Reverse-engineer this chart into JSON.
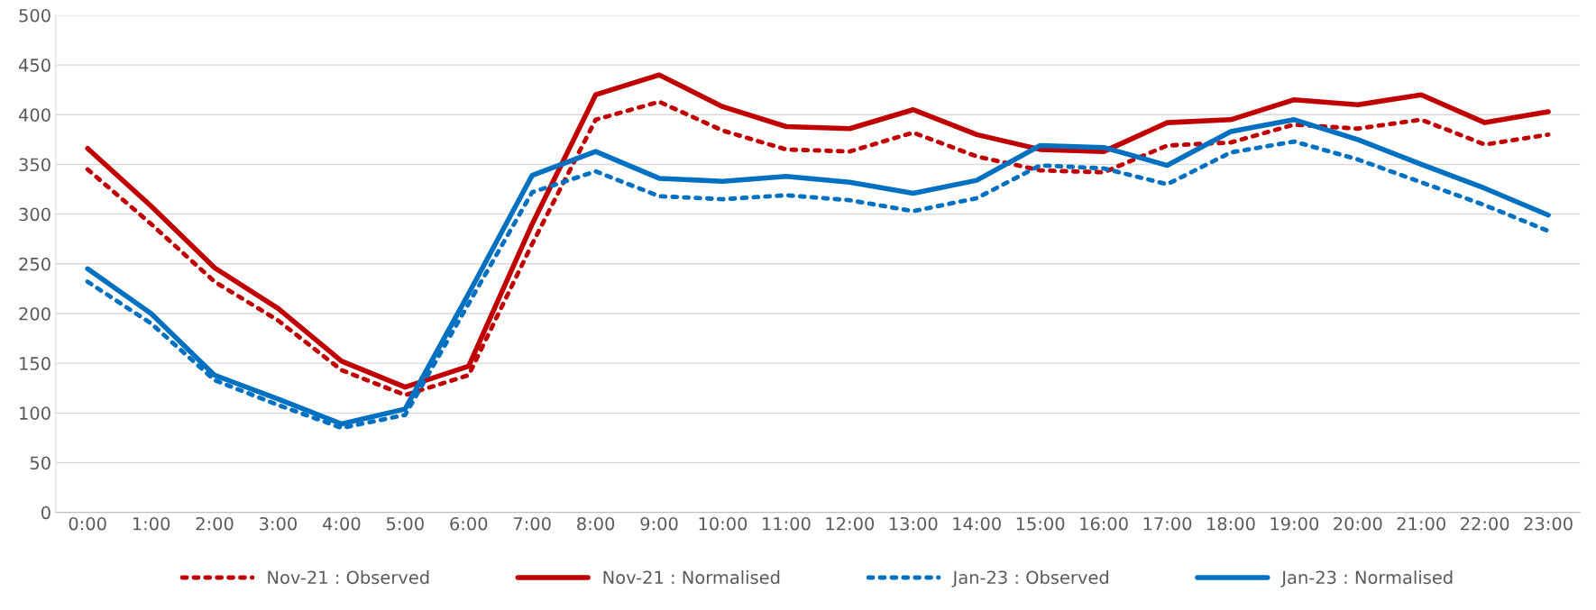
{
  "chart_data": {
    "type": "line",
    "categories": [
      "0:00",
      "1:00",
      "2:00",
      "3:00",
      "4:00",
      "5:00",
      "6:00",
      "7:00",
      "8:00",
      "9:00",
      "10:00",
      "11:00",
      "12:00",
      "13:00",
      "14:00",
      "15:00",
      "16:00",
      "17:00",
      "18:00",
      "19:00",
      "20:00",
      "21:00",
      "22:00",
      "23:00"
    ],
    "series": [
      {
        "name": "Nov-21 : Observed",
        "color": "#c00000",
        "line_style": "dotted",
        "values": [
          345,
          290,
          232,
          193,
          143,
          118,
          138,
          270,
          395,
          413,
          384,
          365,
          363,
          382,
          358,
          344,
          342,
          369,
          372,
          390,
          386,
          395,
          370,
          380
        ]
      },
      {
        "name": "Nov-21 : Normalised",
        "color": "#c00000",
        "line_style": "solid",
        "values": [
          366,
          308,
          246,
          205,
          152,
          126,
          147,
          290,
          420,
          440,
          408,
          388,
          386,
          405,
          380,
          365,
          363,
          392,
          395,
          415,
          410,
          420,
          392,
          403
        ]
      },
      {
        "name": "Jan-23 : Observed",
        "color": "#0070c0",
        "line_style": "dotted",
        "values": [
          232,
          190,
          133,
          108,
          85,
          98,
          210,
          322,
          343,
          318,
          315,
          319,
          314,
          303,
          316,
          349,
          346,
          330,
          362,
          373,
          355,
          332,
          309,
          283
        ]
      },
      {
        "name": "Jan-23 : Normalised",
        "color": "#0070c0",
        "line_style": "solid",
        "values": [
          245,
          200,
          138,
          114,
          89,
          104,
          220,
          339,
          363,
          336,
          333,
          338,
          332,
          321,
          334,
          369,
          367,
          349,
          383,
          395,
          375,
          350,
          326,
          299
        ]
      }
    ],
    "ylim": [
      0,
      500
    ],
    "yticks": [
      0,
      50,
      100,
      150,
      200,
      250,
      300,
      350,
      400,
      450,
      500
    ],
    "grid": "y",
    "legend": "bottom",
    "marker": "none"
  }
}
